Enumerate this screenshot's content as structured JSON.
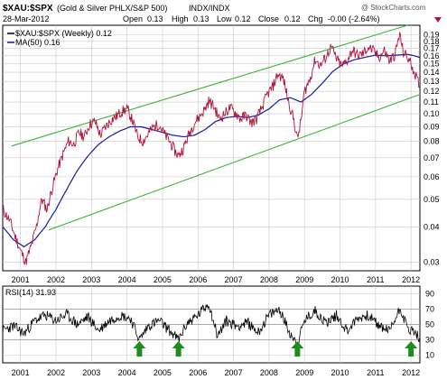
{
  "header": {
    "symbol": "$XAU:$SPX",
    "description": "(Gold & Silver PHLX/S&P 500)",
    "exchange": "INDX/INDX",
    "date": "28-Mar-2012",
    "open_label": "Open",
    "open_value": "0.13",
    "high_label": "High",
    "high_value": "0.13",
    "low_label": "Low",
    "low_value": "0.12",
    "close_label": "Close",
    "close_value": "0.12",
    "chg_label": "Chg",
    "chg_value": "-0.00 (-2.64%)",
    "watermark": "@ StockCharts.com"
  },
  "legend": {
    "price": "$XAU:$SPX (Weekly) 0.12",
    "ma": "MA(50) 0.16",
    "rsi": "RSI(14) 31.93"
  },
  "colors": {
    "price": "#b0143c",
    "ma": "#1a1aa0",
    "channel": "#3cb43c",
    "grid": "#c8c8c8",
    "rsi": "#000000",
    "arrow": "#1e8c1e",
    "chg_triangle": "#b0143c"
  },
  "chart_data": [
    {
      "type": "line",
      "title": "$XAU:$SPX (Gold & Silver PHLX/S&P 500)",
      "scale": "log",
      "ylim": [
        0.028,
        0.205
      ],
      "xlim": [
        2000.5,
        2012.25
      ],
      "y_ticks": [
        0.19,
        0.18,
        0.17,
        0.16,
        0.15,
        0.14,
        0.13,
        0.12,
        0.11,
        0.1,
        0.09,
        0.08,
        0.07,
        0.06,
        0.05,
        0.04,
        0.03
      ],
      "x_ticks": [
        "2001",
        "2002",
        "2003",
        "2004",
        "2005",
        "2006",
        "2007",
        "2008",
        "2009",
        "2010",
        "2011",
        "2012"
      ],
      "series": [
        {
          "name": "$XAU:$SPX (Weekly)",
          "anchors": [
            [
              2000.5,
              0.046
            ],
            [
              2000.7,
              0.042
            ],
            [
              2000.85,
              0.037
            ],
            [
              2001.0,
              0.033
            ],
            [
              2001.15,
              0.03
            ],
            [
              2001.3,
              0.034
            ],
            [
              2001.45,
              0.04
            ],
            [
              2001.6,
              0.05
            ],
            [
              2001.75,
              0.046
            ],
            [
              2001.9,
              0.055
            ],
            [
              2002.05,
              0.064
            ],
            [
              2002.2,
              0.072
            ],
            [
              2002.35,
              0.08
            ],
            [
              2002.5,
              0.078
            ],
            [
              2002.65,
              0.086
            ],
            [
              2002.8,
              0.083
            ],
            [
              2002.95,
              0.092
            ],
            [
              2003.1,
              0.094
            ],
            [
              2003.25,
              0.084
            ],
            [
              2003.4,
              0.09
            ],
            [
              2003.55,
              0.095
            ],
            [
              2003.7,
              0.098
            ],
            [
              2003.85,
              0.102
            ],
            [
              2004.0,
              0.104
            ],
            [
              2004.15,
              0.095
            ],
            [
              2004.3,
              0.083
            ],
            [
              2004.45,
              0.08
            ],
            [
              2004.6,
              0.085
            ],
            [
              2004.75,
              0.09
            ],
            [
              2004.9,
              0.092
            ],
            [
              2005.05,
              0.085
            ],
            [
              2005.2,
              0.08
            ],
            [
              2005.35,
              0.074
            ],
            [
              2005.45,
              0.071
            ],
            [
              2005.6,
              0.076
            ],
            [
              2005.75,
              0.085
            ],
            [
              2005.9,
              0.093
            ],
            [
              2006.05,
              0.098
            ],
            [
              2006.2,
              0.104
            ],
            [
              2006.3,
              0.111
            ],
            [
              2006.45,
              0.106
            ],
            [
              2006.6,
              0.096
            ],
            [
              2006.75,
              0.1
            ],
            [
              2006.9,
              0.105
            ],
            [
              2007.05,
              0.101
            ],
            [
              2007.2,
              0.096
            ],
            [
              2007.35,
              0.099
            ],
            [
              2007.5,
              0.093
            ],
            [
              2007.65,
              0.096
            ],
            [
              2007.8,
              0.105
            ],
            [
              2007.95,
              0.117
            ],
            [
              2008.1,
              0.124
            ],
            [
              2008.25,
              0.138
            ],
            [
              2008.4,
              0.133
            ],
            [
              2008.55,
              0.11
            ],
            [
              2008.7,
              0.095
            ],
            [
              2008.8,
              0.081
            ],
            [
              2008.9,
              0.094
            ],
            [
              2009.0,
              0.12
            ],
            [
              2009.15,
              0.132
            ],
            [
              2009.3,
              0.155
            ],
            [
              2009.45,
              0.148
            ],
            [
              2009.6,
              0.158
            ],
            [
              2009.75,
              0.172
            ],
            [
              2009.9,
              0.156
            ],
            [
              2010.05,
              0.147
            ],
            [
              2010.2,
              0.154
            ],
            [
              2010.35,
              0.168
            ],
            [
              2010.5,
              0.16
            ],
            [
              2010.65,
              0.163
            ],
            [
              2010.8,
              0.172
            ],
            [
              2010.95,
              0.166
            ],
            [
              2011.1,
              0.158
            ],
            [
              2011.25,
              0.167
            ],
            [
              2011.4,
              0.153
            ],
            [
              2011.55,
              0.162
            ],
            [
              2011.68,
              0.19
            ],
            [
              2011.78,
              0.165
            ],
            [
              2011.9,
              0.158
            ],
            [
              2012.0,
              0.15
            ],
            [
              2012.08,
              0.142
            ],
            [
              2012.16,
              0.133
            ],
            [
              2012.24,
              0.124
            ]
          ]
        },
        {
          "name": "MA(50)",
          "anchors": [
            [
              2000.5,
              0.04
            ],
            [
              2000.8,
              0.036
            ],
            [
              2001.1,
              0.034
            ],
            [
              2001.4,
              0.036
            ],
            [
              2001.7,
              0.04
            ],
            [
              2002.0,
              0.046
            ],
            [
              2002.3,
              0.054
            ],
            [
              2002.6,
              0.063
            ],
            [
              2002.9,
              0.071
            ],
            [
              2003.2,
              0.078
            ],
            [
              2003.5,
              0.083
            ],
            [
              2003.8,
              0.087
            ],
            [
              2004.1,
              0.09
            ],
            [
              2004.4,
              0.09
            ],
            [
              2004.7,
              0.088
            ],
            [
              2005.0,
              0.086
            ],
            [
              2005.3,
              0.084
            ],
            [
              2005.6,
              0.083
            ],
            [
              2005.9,
              0.084
            ],
            [
              2006.2,
              0.088
            ],
            [
              2006.5,
              0.094
            ],
            [
              2006.8,
              0.097
            ],
            [
              2007.1,
              0.098
            ],
            [
              2007.4,
              0.097
            ],
            [
              2007.7,
              0.099
            ],
            [
              2008.0,
              0.104
            ],
            [
              2008.3,
              0.112
            ],
            [
              2008.6,
              0.114
            ],
            [
              2008.9,
              0.11
            ],
            [
              2009.2,
              0.117
            ],
            [
              2009.5,
              0.128
            ],
            [
              2009.8,
              0.141
            ],
            [
              2010.1,
              0.15
            ],
            [
              2010.4,
              0.155
            ],
            [
              2010.7,
              0.158
            ],
            [
              2011.0,
              0.161
            ],
            [
              2011.3,
              0.16
            ],
            [
              2011.6,
              0.161
            ],
            [
              2011.9,
              0.162
            ],
            [
              2012.1,
              0.16
            ],
            [
              2012.24,
              0.158
            ]
          ]
        }
      ],
      "channel_lines": [
        {
          "x": [
            2000.75,
            2011.9
          ],
          "y": [
            0.077,
            0.205
          ]
        },
        {
          "x": [
            2001.8,
            2012.25
          ],
          "y": [
            0.039,
            0.117
          ]
        }
      ]
    },
    {
      "type": "line",
      "title": "RSI(14)",
      "ylim": [
        0,
        100
      ],
      "xlim": [
        2000.5,
        2012.25
      ],
      "y_ticks": [
        90,
        70,
        50,
        30,
        10
      ],
      "x_ticks": [
        "2001",
        "2002",
        "2003",
        "2004",
        "2005",
        "2006",
        "2007",
        "2008",
        "2009",
        "2010",
        "2011",
        "2012"
      ],
      "series": [
        {
          "name": "RSI(14)",
          "anchors": [
            [
              2000.5,
              42
            ],
            [
              2000.8,
              48
            ],
            [
              2001.1,
              38
            ],
            [
              2001.4,
              55
            ],
            [
              2001.7,
              62
            ],
            [
              2002.0,
              55
            ],
            [
              2002.3,
              63
            ],
            [
              2002.6,
              50
            ],
            [
              2002.9,
              60
            ],
            [
              2003.2,
              42
            ],
            [
              2003.5,
              55
            ],
            [
              2003.8,
              62
            ],
            [
              2004.1,
              58
            ],
            [
              2004.35,
              30
            ],
            [
              2004.6,
              48
            ],
            [
              2004.9,
              55
            ],
            [
              2005.2,
              42
            ],
            [
              2005.45,
              30
            ],
            [
              2005.7,
              52
            ],
            [
              2006.0,
              62
            ],
            [
              2006.3,
              78
            ],
            [
              2006.55,
              35
            ],
            [
              2006.8,
              55
            ],
            [
              2007.1,
              48
            ],
            [
              2007.4,
              52
            ],
            [
              2007.7,
              40
            ],
            [
              2008.0,
              62
            ],
            [
              2008.3,
              70
            ],
            [
              2008.55,
              42
            ],
            [
              2008.8,
              25
            ],
            [
              2009.0,
              55
            ],
            [
              2009.3,
              68
            ],
            [
              2009.6,
              52
            ],
            [
              2009.9,
              62
            ],
            [
              2010.2,
              42
            ],
            [
              2010.5,
              58
            ],
            [
              2010.8,
              62
            ],
            [
              2011.1,
              48
            ],
            [
              2011.4,
              42
            ],
            [
              2011.7,
              72
            ],
            [
              2011.9,
              45
            ],
            [
              2012.1,
              40
            ],
            [
              2012.24,
              32
            ]
          ]
        }
      ],
      "hlines": [
        70,
        50,
        30
      ],
      "markers": [
        {
          "x": 2004.35,
          "label": "up-arrow"
        },
        {
          "x": 2005.45,
          "label": "up-arrow"
        },
        {
          "x": 2008.8,
          "label": "up-arrow"
        },
        {
          "x": 2012.0,
          "label": "up-arrow"
        }
      ]
    }
  ]
}
